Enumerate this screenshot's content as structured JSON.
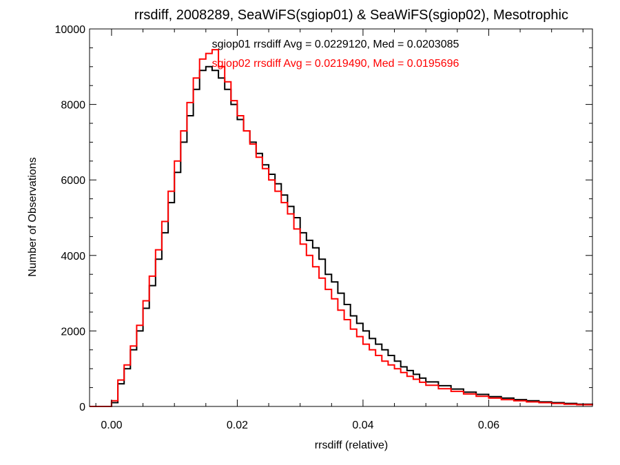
{
  "chart_data": {
    "type": "line",
    "title": "rrsdiff, 2008289, SeaWiFS(sgiop01) & SeaWiFS(sgiop02), Mesotrophic",
    "xlabel": "rrsdiff (relative)",
    "ylabel": "Number of Observations",
    "xlim": [
      -0.0035,
      0.0765
    ],
    "ylim": [
      0,
      10000
    ],
    "x_ticks": [
      0.0,
      0.02,
      0.04,
      0.06
    ],
    "x_tick_labels": [
      "0.00",
      "0.02",
      "0.04",
      "0.06"
    ],
    "y_ticks": [
      0,
      2000,
      4000,
      6000,
      8000,
      10000
    ],
    "y_tick_labels": [
      "0",
      "2000",
      "4000",
      "6000",
      "8000",
      "10000"
    ],
    "grid": false,
    "step": true,
    "annotations": [
      {
        "text": "sgiop01 rrsdiff Avg = 0.0229120, Med = 0.0203085",
        "color": "#000000"
      },
      {
        "text": "sgiop02 rrsdiff Avg = 0.0219490, Med = 0.0195696",
        "color": "#ff0000"
      }
    ],
    "series": [
      {
        "color": "#000000",
        "x": [
          -0.0035,
          -0.001,
          0.0,
          0.001,
          0.002,
          0.003,
          0.004,
          0.005,
          0.006,
          0.007,
          0.008,
          0.009,
          0.01,
          0.011,
          0.012,
          0.013,
          0.014,
          0.015,
          0.016,
          0.017,
          0.018,
          0.019,
          0.02,
          0.021,
          0.022,
          0.023,
          0.024,
          0.025,
          0.026,
          0.027,
          0.028,
          0.029,
          0.03,
          0.031,
          0.032,
          0.033,
          0.034,
          0.035,
          0.036,
          0.037,
          0.038,
          0.039,
          0.04,
          0.041,
          0.042,
          0.043,
          0.044,
          0.045,
          0.046,
          0.047,
          0.048,
          0.049,
          0.05,
          0.052,
          0.054,
          0.056,
          0.058,
          0.06,
          0.062,
          0.064,
          0.066,
          0.068,
          0.07,
          0.072,
          0.074,
          0.0765
        ],
        "y": [
          0,
          0,
          100,
          600,
          1000,
          1500,
          2000,
          2600,
          3200,
          3900,
          4600,
          5400,
          6200,
          7000,
          7700,
          8400,
          8900,
          9000,
          8900,
          8700,
          8400,
          8000,
          7600,
          7300,
          7000,
          6700,
          6400,
          6150,
          5900,
          5600,
          5300,
          5000,
          4600,
          4400,
          4200,
          3900,
          3500,
          3300,
          3000,
          2700,
          2400,
          2200,
          2000,
          1800,
          1650,
          1500,
          1350,
          1200,
          1050,
          950,
          850,
          750,
          650,
          550,
          460,
          380,
          320,
          260,
          220,
          180,
          150,
          120,
          100,
          80,
          60,
          40
        ]
      },
      {
        "color": "#ff0000",
        "x": [
          -0.0035,
          -0.001,
          0.0,
          0.001,
          0.002,
          0.003,
          0.004,
          0.005,
          0.006,
          0.007,
          0.008,
          0.009,
          0.01,
          0.011,
          0.012,
          0.013,
          0.014,
          0.015,
          0.016,
          0.017,
          0.018,
          0.019,
          0.02,
          0.021,
          0.022,
          0.023,
          0.024,
          0.025,
          0.026,
          0.027,
          0.028,
          0.029,
          0.03,
          0.031,
          0.032,
          0.033,
          0.034,
          0.035,
          0.036,
          0.037,
          0.038,
          0.039,
          0.04,
          0.041,
          0.042,
          0.043,
          0.044,
          0.045,
          0.046,
          0.047,
          0.048,
          0.049,
          0.05,
          0.052,
          0.054,
          0.056,
          0.058,
          0.06,
          0.062,
          0.064,
          0.066,
          0.068,
          0.07,
          0.072,
          0.074,
          0.0765
        ],
        "y": [
          0,
          0,
          150,
          700,
          1100,
          1600,
          2150,
          2800,
          3450,
          4150,
          4900,
          5700,
          6500,
          7300,
          8050,
          8700,
          9200,
          9350,
          9450,
          9000,
          8600,
          8100,
          7700,
          7300,
          6950,
          6600,
          6300,
          6000,
          5700,
          5400,
          5100,
          4700,
          4300,
          4000,
          3700,
          3400,
          3100,
          2850,
          2550,
          2300,
          2050,
          1850,
          1650,
          1500,
          1350,
          1200,
          1100,
          1000,
          900,
          800,
          720,
          640,
          560,
          470,
          400,
          330,
          270,
          220,
          180,
          150,
          120,
          100,
          80,
          60,
          45,
          30
        ]
      }
    ]
  }
}
